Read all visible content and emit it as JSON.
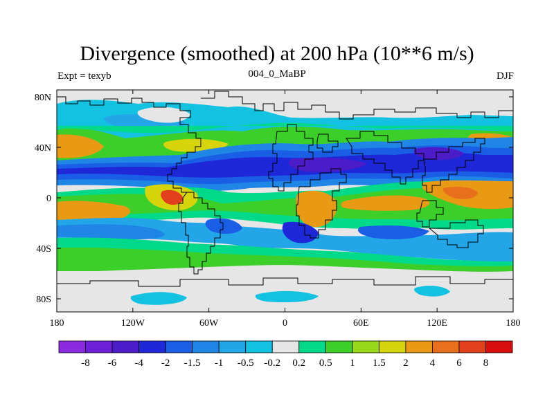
{
  "title": "Divergence (smoothed) at 200 hPa (10**6 m/s)",
  "left_label": "Expt = texyb",
  "center_label": "004_0_MaBP",
  "right_label": "DJF",
  "lat_labels": [
    "80N",
    "40N",
    "0",
    "40S",
    "80S"
  ],
  "lon_labels": [
    "180",
    "120W",
    "60W",
    "0",
    "60E",
    "120E",
    "180"
  ],
  "colorbar": {
    "levels": [
      "-8",
      "-6",
      "-4",
      "-2",
      "-1.5",
      "-1",
      "-0.5",
      "-0.2",
      "0.2",
      "0.5",
      "1",
      "1.5",
      "2",
      "4",
      "6",
      "8"
    ],
    "colors": [
      "#8a2be2",
      "#6f1fd8",
      "#4b1cc8",
      "#1e28d8",
      "#1a5ee6",
      "#1f86e6",
      "#23a6e8",
      "#13c2e0",
      "#e6e6e6",
      "#00d98a",
      "#3ccf2a",
      "#9ad81a",
      "#d6d40a",
      "#e89a14",
      "#e8701c",
      "#e2401c",
      "#d80e0e"
    ]
  }
}
